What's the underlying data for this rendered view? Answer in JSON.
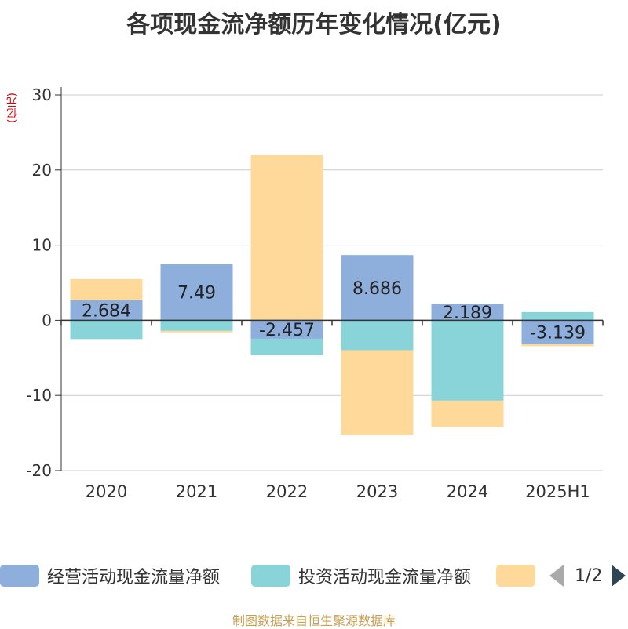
{
  "title": "各项现金流净额历年变化情况(亿元)",
  "unit_label": "(亿元)",
  "source": "制图数据来自恒生聚源数据库",
  "legend": {
    "items": [
      {
        "label": "经营活动现金流量净额",
        "color": "#8eaedc"
      },
      {
        "label": "投资活动现金流量净额",
        "color": "#88d4d8"
      },
      {
        "label": "",
        "color": "#ffd99a"
      }
    ],
    "page_indicator": "1/2"
  },
  "chart_data": {
    "type": "bar",
    "stacked": true,
    "categories": [
      "2020",
      "2021",
      "2022",
      "2023",
      "2024",
      "2025H1"
    ],
    "ylim": [
      -20,
      30
    ],
    "yticks": [
      -20,
      -10,
      0,
      10,
      20,
      30
    ],
    "grid": true,
    "legend_position": "bottom",
    "series": [
      {
        "name": "经营活动现金流量净额",
        "color": "#8eaedc",
        "values": [
          2.684,
          7.49,
          -2.457,
          8.686,
          2.189,
          -3.139
        ],
        "show_labels": true
      },
      {
        "name": "投资活动现金流量净额",
        "color": "#88d4d8",
        "values": [
          -2.5,
          -1.4,
          -2.2,
          -4.0,
          -10.7,
          1.1
        ]
      },
      {
        "color": "#ffd99a",
        "values": [
          2.8,
          -0.2,
          22.0,
          -11.3,
          -3.5,
          -0.3
        ]
      }
    ]
  }
}
